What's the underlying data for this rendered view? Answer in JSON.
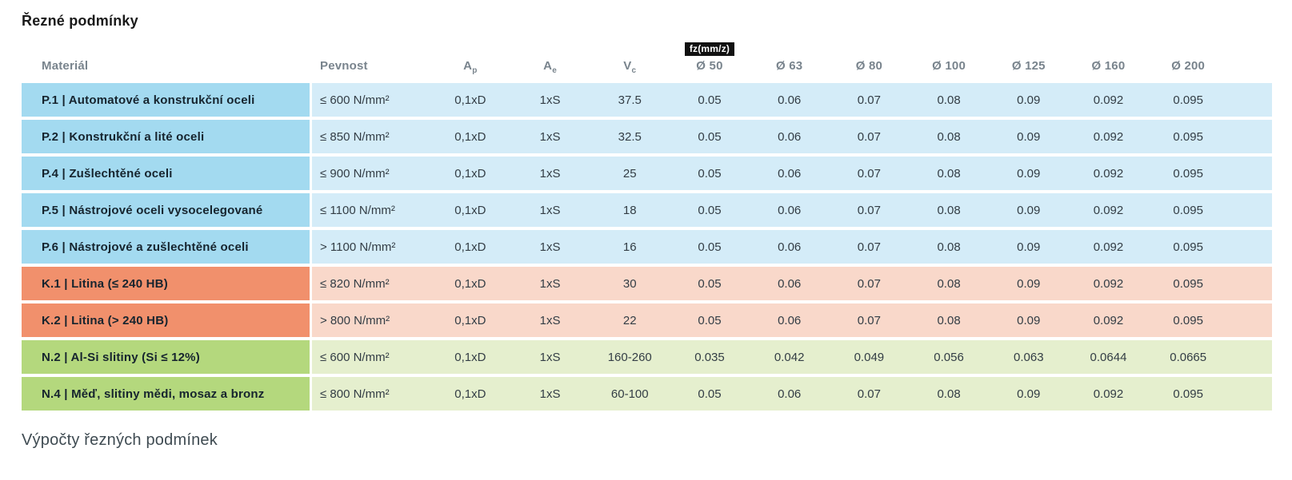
{
  "page": {
    "title": "Řezné podmínky",
    "footer_heading": "Výpočty řezných podmínek"
  },
  "colors": {
    "P": {
      "strong": "#a3daf0",
      "light": "#d4ecf8"
    },
    "K": {
      "strong": "#f1906c",
      "light": "#f9d8ca"
    },
    "N": {
      "strong": "#b4d87d",
      "light": "#e5efce"
    },
    "badge_bg": "#111111",
    "badge_fg": "#ffffff"
  },
  "table": {
    "headers": {
      "material": "Materiál",
      "pevnost": "Pevnost",
      "ap": {
        "base": "A",
        "sub": "p"
      },
      "ae": {
        "base": "A",
        "sub": "e"
      },
      "vc": {
        "base": "V",
        "sub": "c"
      },
      "fz_badge": "fz(mm/z)",
      "diameters": [
        "Ø 50",
        "Ø 63",
        "Ø 80",
        "Ø 100",
        "Ø 125",
        "Ø 160",
        "Ø 200"
      ]
    },
    "rows": [
      {
        "group": "P",
        "name": "P.1 | Automatové a konstrukční oceli",
        "pevnost": "≤ 600 N/mm²",
        "ap": "0,1xD",
        "ae": "1xS",
        "vc": "37.5",
        "fz": [
          "0.05",
          "0.06",
          "0.07",
          "0.08",
          "0.09",
          "0.092",
          "0.095"
        ]
      },
      {
        "group": "P",
        "name": "P.2 | Konstrukční a lité oceli",
        "pevnost": "≤ 850 N/mm²",
        "ap": "0,1xD",
        "ae": "1xS",
        "vc": "32.5",
        "fz": [
          "0.05",
          "0.06",
          "0.07",
          "0.08",
          "0.09",
          "0.092",
          "0.095"
        ]
      },
      {
        "group": "P",
        "name": "P.4 | Zušlechtěné oceli",
        "pevnost": "≤ 900 N/mm²",
        "ap": "0,1xD",
        "ae": "1xS",
        "vc": "25",
        "fz": [
          "0.05",
          "0.06",
          "0.07",
          "0.08",
          "0.09",
          "0.092",
          "0.095"
        ]
      },
      {
        "group": "P",
        "name": "P.5 | Nástrojové oceli vysocelegované",
        "pevnost": "≤ 1100 N/mm²",
        "ap": "0,1xD",
        "ae": "1xS",
        "vc": "18",
        "fz": [
          "0.05",
          "0.06",
          "0.07",
          "0.08",
          "0.09",
          "0.092",
          "0.095"
        ]
      },
      {
        "group": "P",
        "name": "P.6 | Nástrojové a zušlechtěné oceli",
        "pevnost": "> 1100 N/mm²",
        "ap": "0,1xD",
        "ae": "1xS",
        "vc": "16",
        "fz": [
          "0.05",
          "0.06",
          "0.07",
          "0.08",
          "0.09",
          "0.092",
          "0.095"
        ]
      },
      {
        "group": "K",
        "name": "K.1 | Litina (≤ 240 HB)",
        "pevnost": "≤ 820 N/mm²",
        "ap": "0,1xD",
        "ae": "1xS",
        "vc": "30",
        "fz": [
          "0.05",
          "0.06",
          "0.07",
          "0.08",
          "0.09",
          "0.092",
          "0.095"
        ]
      },
      {
        "group": "K",
        "name": "K.2 | Litina (> 240 HB)",
        "pevnost": "> 800 N/mm²",
        "ap": "0,1xD",
        "ae": "1xS",
        "vc": "22",
        "fz": [
          "0.05",
          "0.06",
          "0.07",
          "0.08",
          "0.09",
          "0.092",
          "0.095"
        ]
      },
      {
        "group": "N",
        "name": "N.2 | Al-Si slitiny (Si ≤ 12%)",
        "pevnost": "≤ 600 N/mm²",
        "ap": "0,1xD",
        "ae": "1xS",
        "vc": "160-260",
        "fz": [
          "0.035",
          "0.042",
          "0.049",
          "0.056",
          "0.063",
          "0.0644",
          "0.0665"
        ]
      },
      {
        "group": "N",
        "name": "N.4 | Měď, slitiny mědi, mosaz a bronz",
        "pevnost": "≤ 800 N/mm²",
        "ap": "0,1xD",
        "ae": "1xS",
        "vc": "60-100",
        "fz": [
          "0.05",
          "0.06",
          "0.07",
          "0.08",
          "0.09",
          "0.092",
          "0.095"
        ]
      }
    ]
  }
}
